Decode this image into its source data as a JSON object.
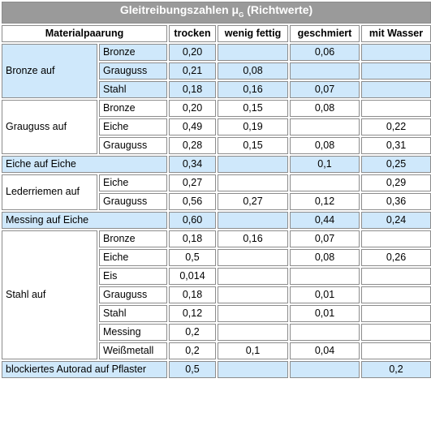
{
  "table": {
    "title": "Gleitreibungszahlen μ",
    "title_sub": "G",
    "title_suffix": " (Richtwerte)",
    "headers": [
      "Materialpaarung",
      "trocken",
      "wenig fettig",
      "geschmiert",
      "mit Wasser"
    ],
    "rows": [
      {
        "group": "Bronze auf",
        "sub": "Bronze",
        "trocken": "0,20",
        "wenig_fettig": "",
        "geschmiert": "0,06",
        "mit_wasser": ""
      },
      {
        "group": "Bronze auf",
        "sub": "Grauguss",
        "trocken": "0,21",
        "wenig_fettig": "0,08",
        "geschmiert": "",
        "mit_wasser": ""
      },
      {
        "group": "Bronze auf",
        "sub": "Stahl",
        "trocken": "0,18",
        "wenig_fettig": "0,16",
        "geschmiert": "0,07",
        "mit_wasser": ""
      },
      {
        "group": "Grauguss auf",
        "sub": "Bronze",
        "trocken": "0,20",
        "wenig_fettig": "0,15",
        "geschmiert": "0,08",
        "mit_wasser": ""
      },
      {
        "group": "Grauguss auf",
        "sub": "Eiche",
        "trocken": "0,49",
        "wenig_fettig": "0,19",
        "geschmiert": "",
        "mit_wasser": "0,22"
      },
      {
        "group": "Grauguss auf",
        "sub": "Grauguss",
        "trocken": "0,28",
        "wenig_fettig": "0,15",
        "geschmiert": "0,08",
        "mit_wasser": "0,31"
      },
      {
        "group": "Eiche auf Eiche",
        "sub": "",
        "trocken": "0,34",
        "wenig_fettig": "",
        "geschmiert": "0,1",
        "mit_wasser": "0,25"
      },
      {
        "group": "Lederriemen auf",
        "sub": "Eiche",
        "trocken": "0,27",
        "wenig_fettig": "",
        "geschmiert": "",
        "mit_wasser": "0,29"
      },
      {
        "group": "Lederriemen auf",
        "sub": "Grauguss",
        "trocken": "0,56",
        "wenig_fettig": "0,27",
        "geschmiert": "0,12",
        "mit_wasser": "0,36"
      },
      {
        "group": "Messing auf Eiche",
        "sub": "",
        "trocken": "0,60",
        "wenig_fettig": "",
        "geschmiert": "0,44",
        "mit_wasser": "0,24"
      },
      {
        "group": "Stahl auf",
        "sub": "Bronze",
        "trocken": "0,18",
        "wenig_fettig": "0,16",
        "geschmiert": "0,07",
        "mit_wasser": ""
      },
      {
        "group": "Stahl auf",
        "sub": "Eiche",
        "trocken": "0,5",
        "wenig_fettig": "",
        "geschmiert": "0,08",
        "mit_wasser": "0,26"
      },
      {
        "group": "Stahl auf",
        "sub": "Eis",
        "trocken": "0,014",
        "wenig_fettig": "",
        "geschmiert": "",
        "mit_wasser": ""
      },
      {
        "group": "Stahl auf",
        "sub": "Grauguss",
        "trocken": "0,18",
        "wenig_fettig": "",
        "geschmiert": "0,01",
        "mit_wasser": ""
      },
      {
        "group": "Stahl auf",
        "sub": "Stahl",
        "trocken": "0,12",
        "wenig_fettig": "",
        "geschmiert": "0,01",
        "mit_wasser": ""
      },
      {
        "group": "Stahl auf",
        "sub": "Messing",
        "trocken": "0,2",
        "wenig_fettig": "",
        "geschmiert": "",
        "mit_wasser": ""
      },
      {
        "group": "Stahl auf",
        "sub": "Weißmetall",
        "trocken": "0,2",
        "wenig_fettig": "0,1",
        "geschmiert": "0,04",
        "mit_wasser": ""
      },
      {
        "group": "blockiertes Autorad auf Pflaster",
        "sub": "",
        "trocken": "0,5",
        "wenig_fettig": "",
        "geschmiert": "",
        "mit_wasser": "0,2"
      }
    ]
  },
  "colors": {
    "title_bg": "#9a9a9a",
    "row_blue": "#cfe8fb",
    "border": "#8c8c8c"
  }
}
